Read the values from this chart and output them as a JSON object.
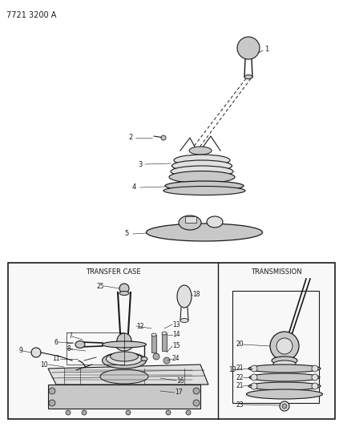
{
  "title": "7721 3200 A",
  "bg": "#ffffff",
  "lc": "#1a1a1a",
  "tc_label": "TRANSFER CASE",
  "tr_label": "TRANSMISSION",
  "gray1": "#c8c8c8",
  "gray2": "#aaaaaa",
  "gray3": "#e0e0e0"
}
